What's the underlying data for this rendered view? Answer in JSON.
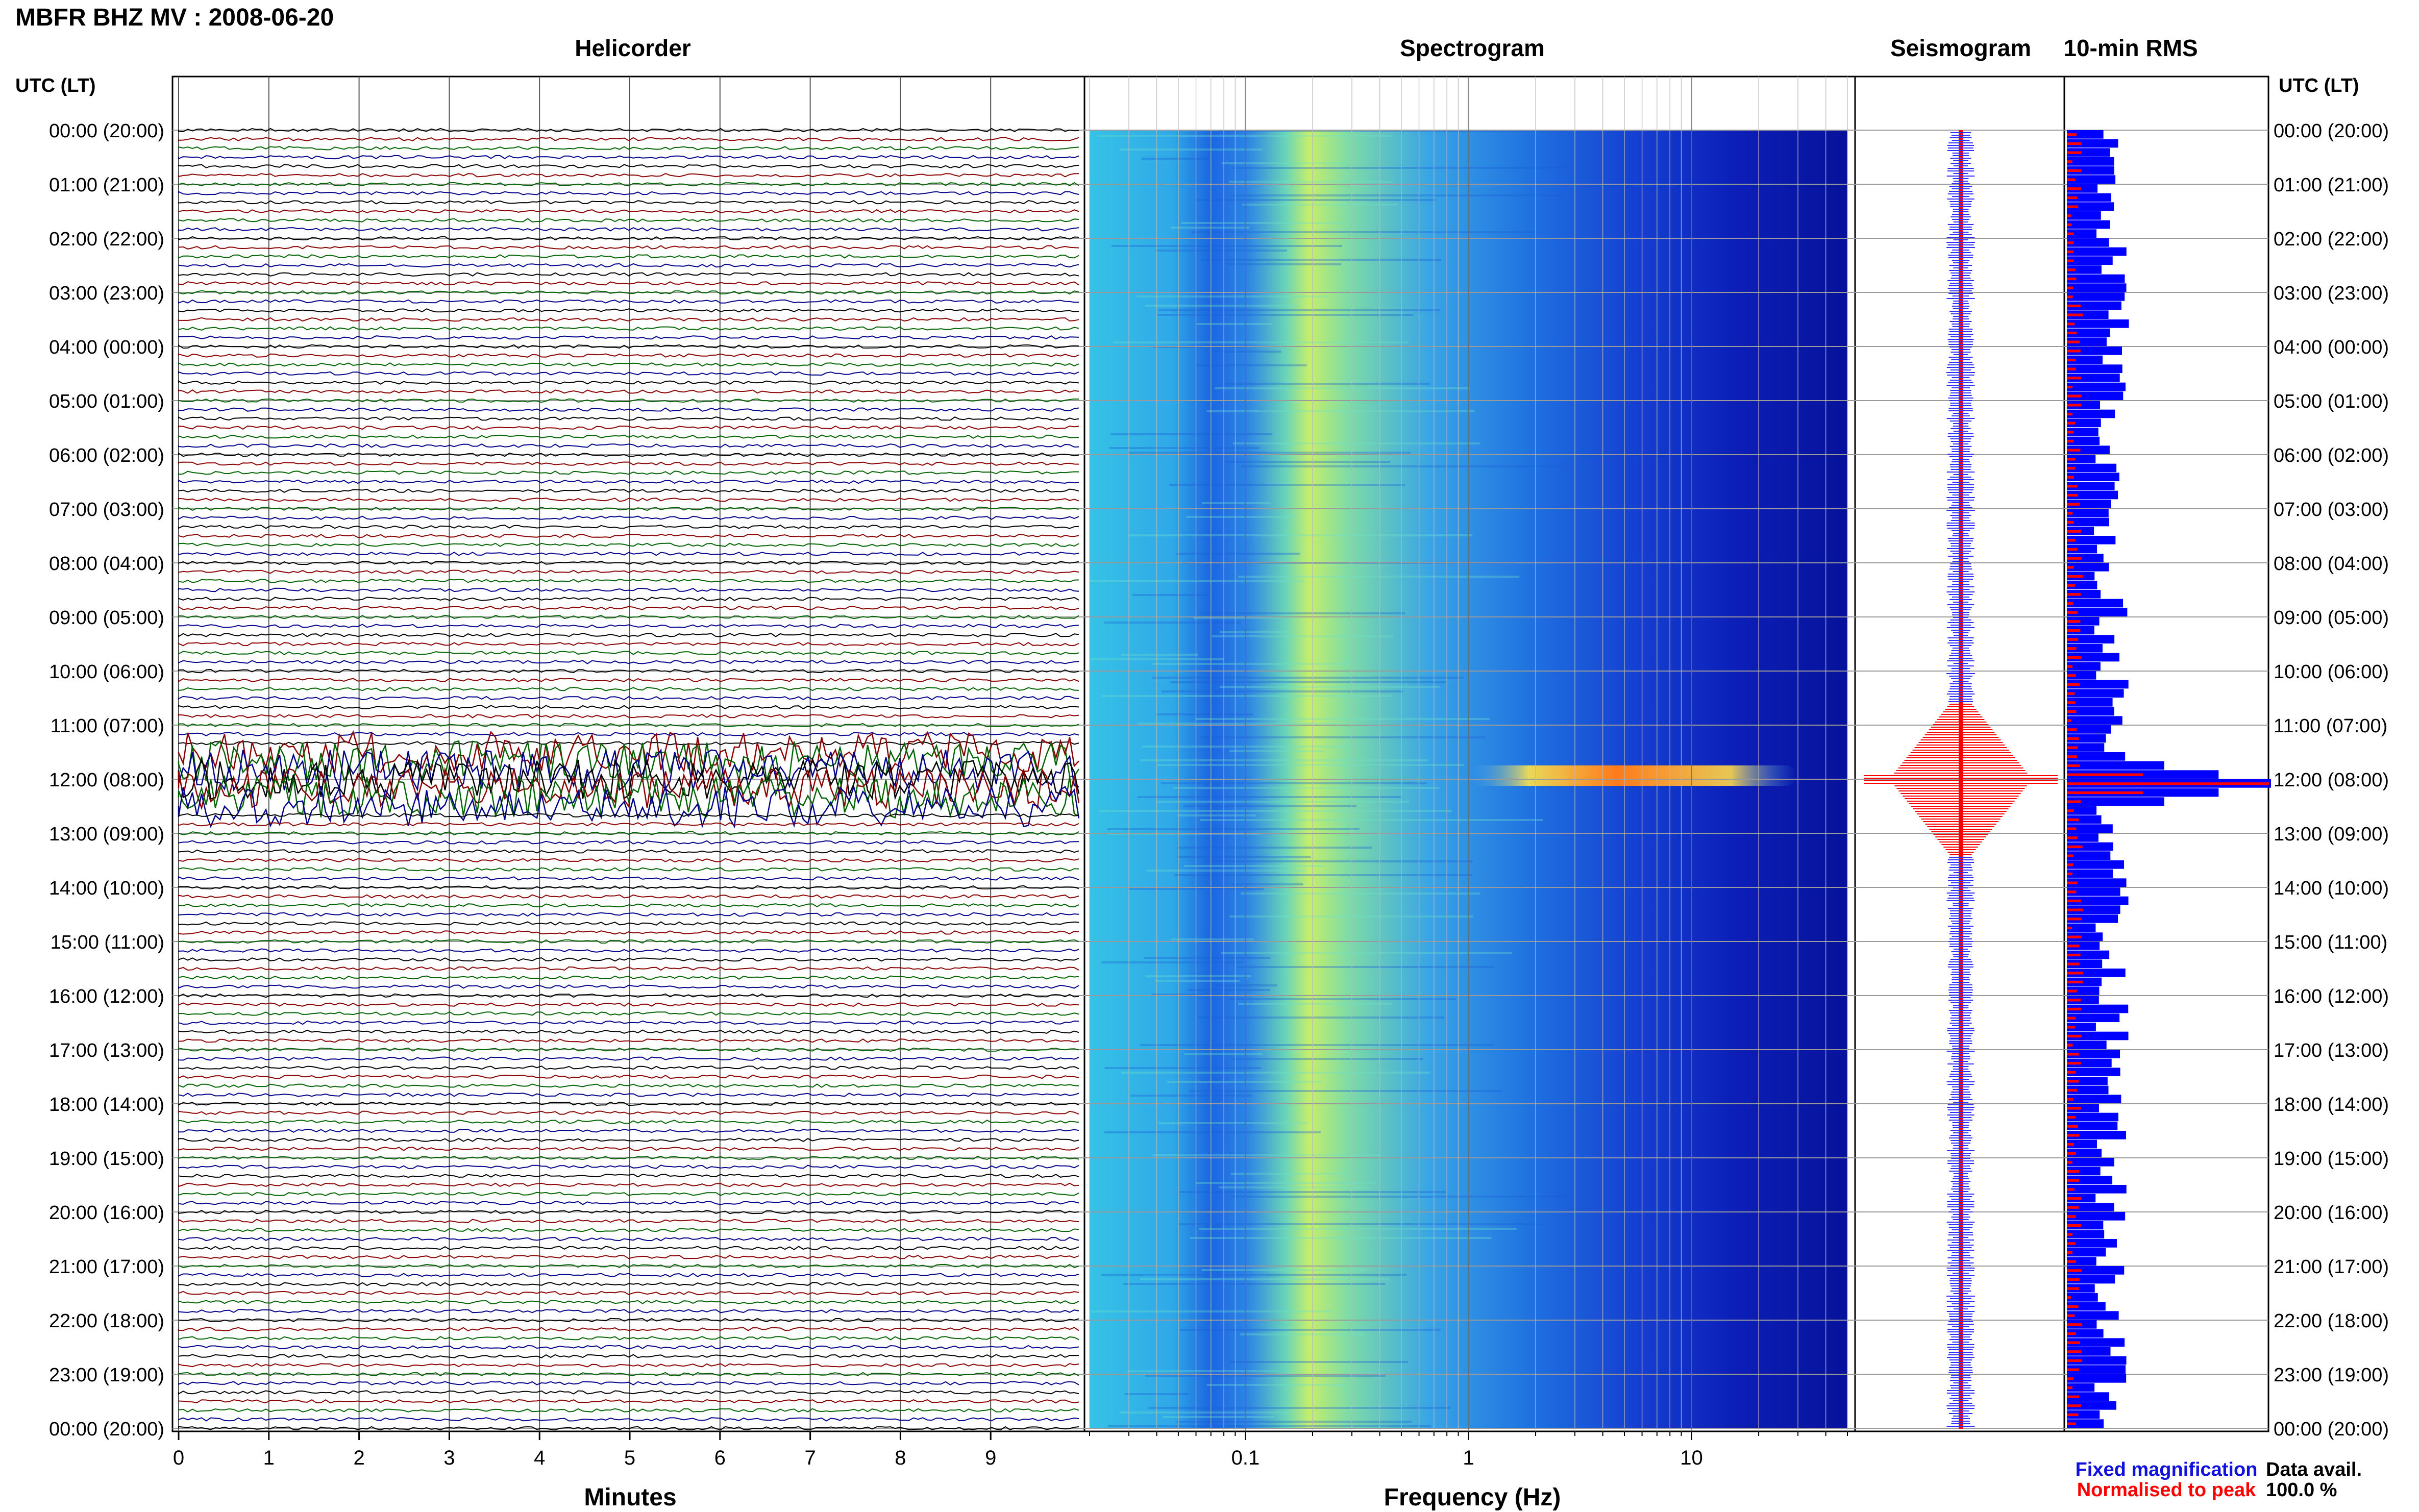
{
  "figure_title": "MBFR BHZ MV : 2008-06-20",
  "panels": {
    "helicorder": "Helicorder",
    "spectrogram": "Spectrogram",
    "seismogram": "Seismogram",
    "rms": "10-min RMS"
  },
  "time_axis_label": "UTC (LT)",
  "time_labels": [
    "00:00 (20:00)",
    "01:00 (21:00)",
    "02:00 (22:00)",
    "03:00 (23:00)",
    "04:00 (00:00)",
    "05:00 (01:00)",
    "06:00 (02:00)",
    "07:00 (03:00)",
    "08:00 (04:00)",
    "09:00 (05:00)",
    "10:00 (06:00)",
    "11:00 (07:00)",
    "12:00 (08:00)",
    "13:00 (09:00)",
    "14:00 (10:00)",
    "15:00 (11:00)",
    "16:00 (12:00)",
    "17:00 (13:00)",
    "18:00 (14:00)",
    "19:00 (15:00)",
    "20:00 (16:00)",
    "21:00 (17:00)",
    "22:00 (18:00)",
    "23:00 (19:00)",
    "00:00 (20:00)"
  ],
  "helicorder_x_ticks": [
    "0",
    "1",
    "2",
    "3",
    "4",
    "5",
    "6",
    "7",
    "8",
    "9"
  ],
  "helicorder_xlabel": "Minutes",
  "spectrogram_x_ticks": [
    "0.1",
    "1",
    "10"
  ],
  "spectrogram_xlabel": "Frequency (Hz)",
  "legend": {
    "fixed": "Fixed magnification",
    "normalised": "Normalised to peak",
    "fixed_color": "#1010e0",
    "normalised_color": "#ff0000"
  },
  "data_avail_label": "Data avail.",
  "data_avail_value": "100.0 %",
  "colors": {
    "trace_cycle": [
      "#000000",
      "#8b0000",
      "#006400",
      "#00008b"
    ],
    "rms_fixed": "#0000ff",
    "rms_normalised": "#ff0000",
    "seismo_envelope": "#0000ff",
    "seismo_core": "#ff0000"
  },
  "chart_data": [
    {
      "type": "line",
      "title": "Helicorder",
      "xlabel": "Minutes",
      "xlim": [
        0,
        10
      ],
      "ylabel": "UTC (LT)",
      "traces_per_hour": 6,
      "event_hours_utc": [
        12.0
      ],
      "grid": true
    },
    {
      "type": "heatmap",
      "title": "Spectrogram",
      "xlabel": "Frequency (Hz)",
      "x_scale": "log",
      "xlim": [
        0.02,
        50
      ],
      "peak_band_hz": [
        1.5,
        30
      ],
      "peak_time_utc": "12:00"
    },
    {
      "type": "line",
      "title": "Seismogram",
      "peak_time_utc": "12:00"
    },
    {
      "type": "bar",
      "title": "10-min RMS",
      "series": [
        {
          "name": "Fixed magnification",
          "peak_time_utc": "12:00",
          "peak_relative": 1.0,
          "typical_relative": 0.22
        },
        {
          "name": "Normalised to peak",
          "peak_time_utc": "12:00",
          "peak_relative": 1.0,
          "typical_relative": 0.05
        }
      ]
    }
  ]
}
